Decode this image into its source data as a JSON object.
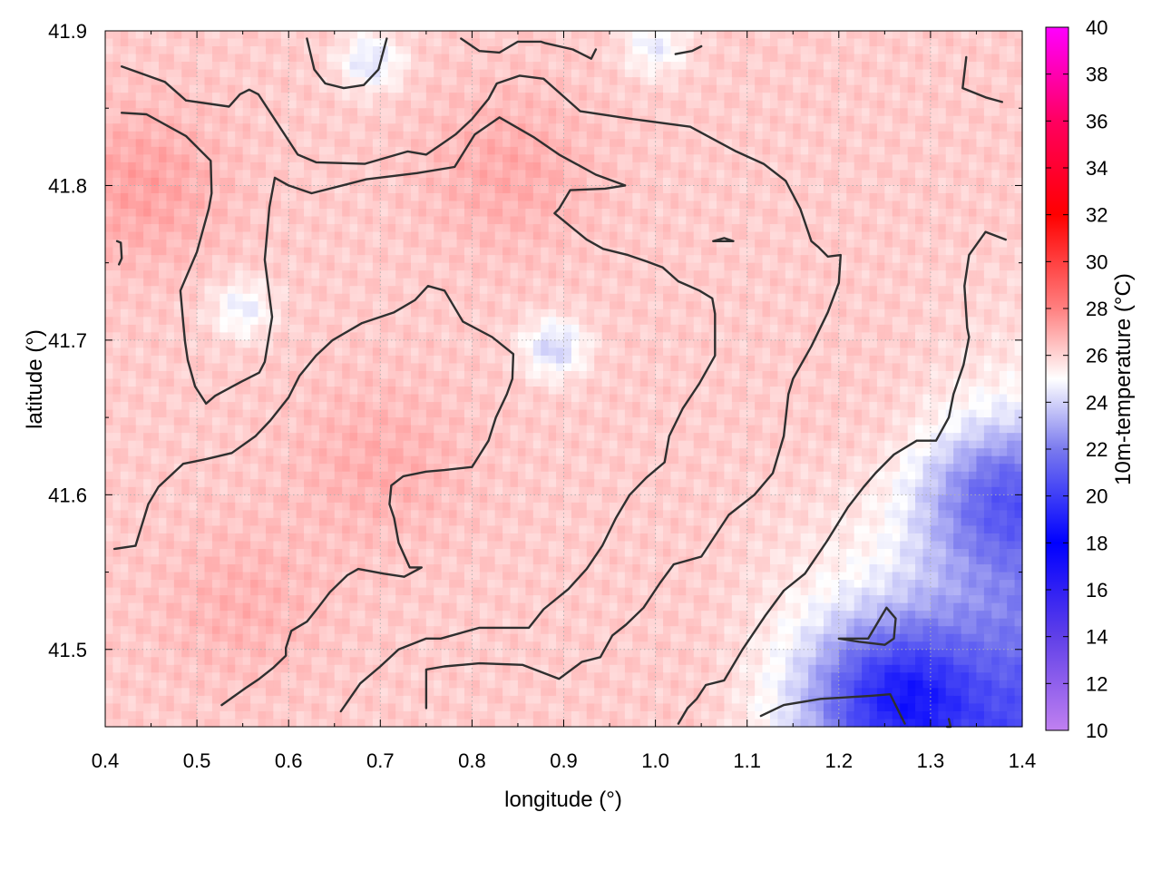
{
  "chart_data": {
    "type": "heatmap",
    "title": "",
    "xlabel": "longitude (°)",
    "ylabel": "latitude (°)",
    "xlim": [
      0.4,
      1.4
    ],
    "ylim": [
      41.45,
      41.9
    ],
    "xticks": [
      "0.4",
      "0.5",
      "0.6",
      "0.7",
      "0.8",
      "0.9",
      "1.0",
      "1.1",
      "1.2",
      "1.3",
      "1.4"
    ],
    "yticks": [
      "41.5",
      "41.6",
      "41.7",
      "41.8",
      "41.9"
    ],
    "grid": true,
    "colorbar": {
      "label": "10m-temperature (°C)",
      "range": [
        10,
        40
      ],
      "ticks": [
        "10",
        "12",
        "14",
        "16",
        "18",
        "20",
        "22",
        "24",
        "26",
        "28",
        "30",
        "32",
        "34",
        "36",
        "38",
        "40"
      ],
      "colors": {
        "10": "#c080f0",
        "14": "#6040e8",
        "18": "#0000ff",
        "22": "#7a7aee",
        "25": "#ffffff",
        "28": "#ff8080",
        "32": "#ff0000",
        "36": "#ff0060",
        "40": "#ff00ff"
      }
    },
    "field": {
      "description_values": "approximate temperature surface, °C",
      "base": 26.2,
      "cool_spots": [
        {
          "lon": 1.26,
          "lat": 41.47,
          "value": 21.0
        },
        {
          "lon": 1.38,
          "lat": 41.6,
          "value": 22.5
        },
        {
          "lon": 0.69,
          "lat": 41.88,
          "value": 24.3
        },
        {
          "lon": 0.89,
          "lat": 41.695,
          "value": 24.0
        },
        {
          "lon": 0.55,
          "lat": 41.72,
          "value": 24.6
        },
        {
          "lon": 1.0,
          "lat": 41.89,
          "value": 24.6
        }
      ],
      "warm_spots": [
        {
          "lon": 0.44,
          "lat": 41.8,
          "value": 27.2
        },
        {
          "lon": 0.84,
          "lat": 41.81,
          "value": 27.0
        },
        {
          "lon": 0.7,
          "lat": 41.62,
          "value": 26.9
        },
        {
          "lon": 0.55,
          "lat": 41.53,
          "value": 26.8
        }
      ]
    },
    "contours": [
      [
        [
          0.418,
          41.877
        ],
        [
          0.465,
          41.867
        ],
        [
          0.488,
          41.855
        ],
        [
          0.535,
          41.851
        ],
        [
          0.547,
          41.859
        ],
        [
          0.557,
          41.862
        ],
        [
          0.567,
          41.859
        ],
        [
          0.61,
          41.82
        ],
        [
          0.63,
          41.815
        ],
        [
          0.683,
          41.814
        ],
        [
          0.73,
          41.822
        ],
        [
          0.75,
          41.82
        ],
        [
          0.765,
          41.826
        ],
        [
          0.782,
          41.833
        ],
        [
          0.8,
          41.843
        ],
        [
          0.818,
          41.856
        ],
        [
          0.827,
          41.866
        ],
        [
          0.852,
          41.871
        ],
        [
          0.878,
          41.869
        ],
        [
          0.918,
          41.848
        ],
        [
          0.975,
          41.843
        ],
        [
          1.038,
          41.838
        ],
        [
          1.088,
          41.822
        ],
        [
          1.118,
          41.814
        ],
        [
          1.142,
          41.803
        ],
        [
          1.158,
          41.785
        ],
        [
          1.17,
          41.764
        ],
        [
          1.178,
          41.76
        ],
        [
          1.188,
          41.754
        ],
        [
          1.202,
          41.755
        ],
        [
          1.2,
          41.737
        ],
        [
          1.188,
          41.718
        ],
        [
          1.17,
          41.696
        ],
        [
          1.15,
          41.675
        ],
        [
          1.145,
          41.665
        ],
        [
          1.14,
          41.638
        ],
        [
          1.128,
          41.614
        ],
        [
          1.108,
          41.6
        ],
        [
          1.08,
          41.587
        ],
        [
          1.05,
          41.56
        ],
        [
          1.02,
          41.555
        ],
        [
          1.005,
          41.543
        ],
        [
          0.987,
          41.527
        ],
        [
          0.968,
          41.516
        ],
        [
          0.953,
          41.509
        ],
        [
          0.94,
          41.495
        ],
        [
          0.92,
          41.492
        ],
        [
          0.895,
          41.481
        ],
        [
          0.855,
          41.49
        ],
        [
          0.808,
          41.491
        ],
        [
          0.77,
          41.489
        ],
        [
          0.75,
          41.487
        ],
        [
          0.75,
          41.477
        ],
        [
          0.75,
          41.462
        ]
      ],
      [
        [
          0.418,
          41.847
        ],
        [
          0.445,
          41.846
        ],
        [
          0.488,
          41.832
        ],
        [
          0.515,
          41.816
        ],
        [
          0.516,
          41.795
        ],
        [
          0.513,
          41.785
        ],
        [
          0.5,
          41.757
        ],
        [
          0.482,
          41.732
        ],
        [
          0.485,
          41.712
        ],
        [
          0.487,
          41.699
        ],
        [
          0.49,
          41.687
        ],
        [
          0.498,
          41.67
        ],
        [
          0.51,
          41.659
        ],
        [
          0.52,
          41.664
        ],
        [
          0.548,
          41.673
        ],
        [
          0.568,
          41.679
        ],
        [
          0.574,
          41.686
        ],
        [
          0.582,
          41.715
        ],
        [
          0.574,
          41.752
        ],
        [
          0.579,
          41.786
        ],
        [
          0.585,
          41.805
        ],
        [
          0.6,
          41.8
        ],
        [
          0.625,
          41.795
        ],
        [
          0.685,
          41.804
        ],
        [
          0.74,
          41.808
        ],
        [
          0.781,
          41.812
        ],
        [
          0.803,
          41.833
        ],
        [
          0.83,
          41.844
        ],
        [
          0.868,
          41.831
        ],
        [
          0.895,
          41.82
        ],
        [
          0.935,
          41.807
        ],
        [
          0.967,
          41.8
        ],
        [
          0.945,
          41.798
        ],
        [
          0.907,
          41.797
        ],
        [
          0.895,
          41.785
        ],
        [
          0.89,
          41.782
        ],
        [
          0.925,
          41.765
        ],
        [
          0.943,
          41.759
        ],
        [
          0.97,
          41.755
        ],
        [
          0.99,
          41.751
        ],
        [
          1.008,
          41.747
        ],
        [
          1.025,
          41.738
        ],
        [
          1.048,
          41.732
        ],
        [
          1.062,
          41.727
        ],
        [
          1.065,
          41.717
        ],
        [
          1.065,
          41.69
        ],
        [
          1.048,
          41.672
        ],
        [
          1.03,
          41.656
        ],
        [
          1.015,
          41.638
        ],
        [
          1.01,
          41.621
        ],
        [
          0.99,
          41.611
        ],
        [
          0.972,
          41.6
        ],
        [
          0.957,
          41.585
        ],
        [
          0.942,
          41.567
        ],
        [
          0.925,
          41.552
        ],
        [
          0.905,
          41.539
        ],
        [
          0.878,
          41.526
        ],
        [
          0.862,
          41.514
        ],
        [
          0.808,
          41.514
        ],
        [
          0.766,
          41.507
        ],
        [
          0.75,
          41.507
        ],
        [
          0.72,
          41.5
        ],
        [
          0.7,
          41.489
        ],
        [
          0.678,
          41.478
        ],
        [
          0.657,
          41.46
        ]
      ],
      [
        [
          0.41,
          41.565
        ],
        [
          0.433,
          41.567
        ],
        [
          0.447,
          41.594
        ],
        [
          0.458,
          41.605
        ],
        [
          0.485,
          41.62
        ],
        [
          0.51,
          41.623
        ],
        [
          0.538,
          41.627
        ],
        [
          0.564,
          41.638
        ],
        [
          0.58,
          41.648
        ],
        [
          0.6,
          41.663
        ],
        [
          0.612,
          41.677
        ],
        [
          0.63,
          41.69
        ],
        [
          0.648,
          41.7
        ],
        [
          0.68,
          41.711
        ],
        [
          0.715,
          41.718
        ],
        [
          0.738,
          41.726
        ],
        [
          0.752,
          41.735
        ],
        [
          0.77,
          41.732
        ],
        [
          0.79,
          41.712
        ],
        [
          0.822,
          41.702
        ],
        [
          0.845,
          41.691
        ],
        [
          0.844,
          41.675
        ],
        [
          0.838,
          41.665
        ],
        [
          0.826,
          41.65
        ],
        [
          0.818,
          41.635
        ],
        [
          0.8,
          41.618
        ],
        [
          0.77,
          41.616
        ],
        [
          0.75,
          41.615
        ],
        [
          0.725,
          41.612
        ],
        [
          0.712,
          41.606
        ],
        [
          0.71,
          41.594
        ],
        [
          0.715,
          41.585
        ],
        [
          0.72,
          41.569
        ],
        [
          0.732,
          41.553
        ],
        [
          0.745,
          41.553
        ],
        [
          0.726,
          41.547
        ],
        [
          0.704,
          41.549
        ],
        [
          0.676,
          41.552
        ],
        [
          0.664,
          41.548
        ],
        [
          0.645,
          41.537
        ],
        [
          0.632,
          41.527
        ],
        [
          0.62,
          41.518
        ],
        [
          0.603,
          41.512
        ],
        [
          0.597,
          41.501
        ],
        [
          0.597,
          41.496
        ],
        [
          0.583,
          41.488
        ],
        [
          0.568,
          41.481
        ],
        [
          0.553,
          41.475
        ],
        [
          0.527,
          41.464
        ]
      ],
      [
        [
          0.62,
          41.895
        ],
        [
          0.628,
          41.875
        ],
        [
          0.64,
          41.866
        ],
        [
          0.66,
          41.863
        ],
        [
          0.682,
          41.865
        ],
        [
          0.698,
          41.875
        ],
        [
          0.707,
          41.895
        ]
      ],
      [
        [
          0.788,
          41.895
        ],
        [
          0.808,
          41.887
        ],
        [
          0.83,
          41.886
        ],
        [
          0.85,
          41.893
        ],
        [
          0.875,
          41.893
        ],
        [
          0.88,
          41.892
        ],
        [
          0.91,
          41.888
        ],
        [
          0.93,
          41.882
        ],
        [
          0.935,
          41.888
        ]
      ],
      [
        [
          1.022,
          41.885
        ],
        [
          1.04,
          41.887
        ],
        [
          1.05,
          41.89
        ]
      ],
      [
        [
          1.339,
          41.883
        ],
        [
          1.335,
          41.863
        ],
        [
          1.36,
          41.857
        ],
        [
          1.378,
          41.854
        ]
      ],
      [
        [
          0.413,
          41.764
        ],
        [
          0.417,
          41.763
        ],
        [
          0.418,
          41.753
        ],
        [
          0.415,
          41.749
        ]
      ],
      [
        [
          1.063,
          41.764
        ],
        [
          1.075,
          41.766
        ],
        [
          1.085,
          41.764
        ],
        [
          1.063,
          41.764
        ]
      ],
      [
        [
          1.382,
          41.765
        ],
        [
          1.36,
          41.77
        ],
        [
          1.342,
          41.755
        ],
        [
          1.337,
          41.735
        ],
        [
          1.34,
          41.708
        ],
        [
          1.342,
          41.702
        ],
        [
          1.336,
          41.684
        ],
        [
          1.325,
          41.665
        ],
        [
          1.32,
          41.65
        ],
        [
          1.306,
          41.635
        ],
        [
          1.285,
          41.635
        ],
        [
          1.26,
          41.626
        ],
        [
          1.24,
          41.614
        ],
        [
          1.227,
          41.605
        ],
        [
          1.21,
          41.592
        ],
        [
          1.187,
          41.57
        ],
        [
          1.163,
          41.549
        ],
        [
          1.14,
          41.538
        ],
        [
          1.12,
          41.522
        ],
        [
          1.095,
          41.5
        ],
        [
          1.075,
          41.48
        ],
        [
          1.055,
          41.477
        ],
        [
          1.045,
          41.468
        ],
        [
          1.035,
          41.462
        ],
        [
          1.025,
          41.452
        ]
      ],
      [
        [
          1.2,
          41.507
        ],
        [
          1.232,
          41.507
        ],
        [
          1.252,
          41.527
        ],
        [
          1.262,
          41.52
        ],
        [
          1.26,
          41.507
        ],
        [
          1.25,
          41.503
        ],
        [
          1.222,
          41.505
        ],
        [
          1.2,
          41.507
        ]
      ],
      [
        [
          1.115,
          41.457
        ],
        [
          1.14,
          41.464
        ],
        [
          1.18,
          41.468
        ],
        [
          1.235,
          41.47
        ],
        [
          1.256,
          41.471
        ],
        [
          1.272,
          41.452
        ]
      ],
      [
        [
          1.32,
          41.455
        ],
        [
          1.322,
          41.45
        ],
        [
          1.318,
          41.45
        ]
      ]
    ]
  }
}
